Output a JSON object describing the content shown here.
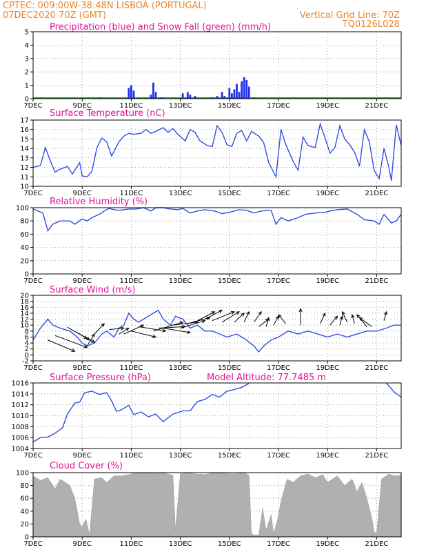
{
  "header": {
    "line1": "CPTEC:   009:00W-38:48N  LISBOA (PORTUGAL)",
    "line2": "07DEC2020 70Z (GMT)",
    "grid_note": "Vertical Grid Line: 70Z",
    "model_code": "TQ0126L028"
  },
  "colors": {
    "header": "#e8872a",
    "title": "#e0109a",
    "line": "#2f4de0",
    "precip": "#1f2ff0",
    "snow": "#1aa01a",
    "cloud": "#b0b0b0",
    "arrow": "#000000"
  },
  "x_ticks": [
    "7DEC",
    "9DEC",
    "11DEC",
    "13DEC",
    "15DEC",
    "17DEC",
    "19DEC",
    "21DEC"
  ],
  "chart_data": [
    {
      "type": "bar",
      "title": "Precipitation (blue) and Snow Fall (green) (mm/h)",
      "ylim": [
        0,
        5
      ],
      "yticks": [
        "0",
        "1",
        "2",
        "3",
        "4",
        "5"
      ],
      "x": [
        9.7,
        10.9,
        11.0,
        11.1,
        11.8,
        11.9,
        12.0,
        12.2,
        12.3,
        13.1,
        13.3,
        13.4,
        13.6,
        14.3,
        14.5,
        14.7,
        14.8,
        15.0,
        15.1,
        15.2,
        15.3,
        15.4,
        15.5,
        15.6,
        15.7,
        15.8,
        16.0
      ],
      "values": [
        0.1,
        0.8,
        1.0,
        0.6,
        0.3,
        1.2,
        0.5,
        0.1,
        0.1,
        0.4,
        0.5,
        0.3,
        0.2,
        0.1,
        0.2,
        0.5,
        0.2,
        0.8,
        0.4,
        0.7,
        1.1,
        0.5,
        1.3,
        1.6,
        1.4,
        0.9,
        0.1
      ]
    },
    {
      "type": "line",
      "title": "Surface Temperature (nC)",
      "ylim": [
        10,
        17
      ],
      "yticks": [
        "10",
        "11",
        "12",
        "13",
        "14",
        "15",
        "16",
        "17"
      ],
      "x": [
        7.0,
        7.3,
        7.5,
        7.7,
        7.9,
        8.1,
        8.4,
        8.6,
        8.9,
        9.0,
        9.2,
        9.4,
        9.6,
        9.8,
        10.0,
        10.2,
        10.5,
        10.7,
        10.9,
        11.1,
        11.4,
        11.6,
        11.8,
        12.0,
        12.3,
        12.5,
        12.7,
        12.9,
        13.2,
        13.4,
        13.6,
        13.8,
        14.1,
        14.3,
        14.5,
        14.7,
        14.9,
        15.1,
        15.3,
        15.5,
        15.7,
        15.9,
        16.2,
        16.4,
        16.6,
        16.8,
        16.9,
        17.1,
        17.3,
        17.6,
        17.8,
        18.0,
        18.2,
        18.5,
        18.7,
        18.9,
        19.1,
        19.3,
        19.5,
        19.7,
        19.9,
        20.1,
        20.3,
        20.5,
        20.7,
        20.9,
        21.1,
        21.3,
        21.5,
        21.6,
        21.8,
        22.0
      ],
      "values": [
        12.0,
        12.2,
        14.1,
        12.7,
        11.5,
        11.8,
        12.1,
        11.3,
        12.5,
        11.1,
        11.0,
        11.6,
        14.1,
        15.1,
        14.7,
        13.2,
        14.7,
        15.3,
        15.6,
        15.5,
        15.6,
        16.0,
        15.6,
        15.8,
        16.2,
        15.7,
        16.1,
        15.5,
        14.8,
        16.0,
        15.7,
        14.8,
        14.3,
        14.2,
        16.4,
        15.7,
        14.4,
        14.2,
        15.6,
        15.9,
        14.8,
        15.8,
        15.3,
        14.6,
        12.5,
        11.5,
        11.0,
        16.0,
        14.4,
        12.6,
        11.7,
        15.2,
        14.3,
        14.1,
        16.6,
        15.1,
        13.5,
        14.1,
        16.4,
        15.0,
        14.4,
        13.6,
        12.1,
        16.0,
        14.7,
        11.7,
        10.8,
        14.0,
        12.0,
        10.6,
        16.5,
        14.3
      ]
    },
    {
      "type": "line",
      "title": "Relative Humidity (%)",
      "ylim": [
        0,
        100
      ],
      "yticks": [
        "0",
        "20",
        "40",
        "60",
        "80",
        "100"
      ],
      "x": [
        7.0,
        7.4,
        7.6,
        7.8,
        8.1,
        8.5,
        8.7,
        9.0,
        9.2,
        9.4,
        9.7,
        9.9,
        10.1,
        10.3,
        10.5,
        10.9,
        11.2,
        11.5,
        11.8,
        12.0,
        12.3,
        12.6,
        12.9,
        13.1,
        13.4,
        13.7,
        14.0,
        14.4,
        14.7,
        15.0,
        15.4,
        15.7,
        16.0,
        16.3,
        16.7,
        16.9,
        17.1,
        17.4,
        17.8,
        18.1,
        18.5,
        18.9,
        19.1,
        19.4,
        19.8,
        20.2,
        20.5,
        20.9,
        21.1,
        21.3,
        21.6,
        21.8,
        22.0
      ],
      "values": [
        98,
        92,
        65,
        75,
        80,
        80,
        75,
        83,
        80,
        85,
        90,
        95,
        99,
        97,
        96,
        98,
        98,
        100,
        95,
        100,
        100,
        98,
        97,
        99,
        92,
        95,
        97,
        95,
        91,
        93,
        97,
        96,
        92,
        95,
        96,
        75,
        85,
        80,
        85,
        90,
        92,
        93,
        95,
        97,
        98,
        90,
        82,
        80,
        75,
        90,
        77,
        80,
        90
      ]
    },
    {
      "type": "line",
      "title": "Surface Wind (m/s)",
      "ylim": [
        -2,
        20
      ],
      "yticks": [
        "-2",
        "0",
        "2",
        "4",
        "6",
        "8",
        "10",
        "12",
        "14",
        "16",
        "18",
        "20"
      ],
      "x": [
        7.0,
        7.3,
        7.6,
        7.8,
        8.1,
        8.5,
        8.8,
        9.0,
        9.2,
        9.5,
        9.8,
        10.0,
        10.3,
        10.5,
        10.7,
        10.9,
        11.1,
        11.3,
        11.5,
        11.7,
        11.9,
        12.1,
        12.3,
        12.6,
        12.8,
        13.1,
        13.4,
        13.7,
        14.0,
        14.3,
        14.6,
        14.9,
        15.3,
        15.7,
        16.0,
        16.2,
        16.4,
        16.7,
        17.0,
        17.4,
        17.8,
        18.2,
        18.6,
        19.0,
        19.4,
        19.8,
        20.2,
        20.6,
        21.0,
        21.4,
        21.7,
        22.0
      ],
      "values": [
        5,
        9,
        12,
        10,
        9,
        8,
        6,
        4,
        3,
        4,
        7,
        8,
        6,
        9,
        10,
        14,
        12,
        11,
        12,
        13,
        14,
        15,
        12,
        10,
        13,
        12,
        9,
        10,
        8,
        8,
        7,
        6,
        7,
        5,
        3,
        1,
        3,
        5,
        6,
        8,
        7,
        8,
        7,
        6,
        7,
        6,
        7,
        8,
        8,
        9,
        10,
        10
      ],
      "arrows": [
        [
          7.6,
          5.0,
          8.7,
          1.2
        ],
        [
          7.9,
          6.5,
          9.2,
          2.5
        ],
        [
          8.4,
          9.3,
          9.2,
          5.5
        ],
        [
          8.8,
          7.5,
          9.3,
          5.0
        ],
        [
          9.0,
          6.5,
          9.5,
          4.2
        ],
        [
          9.2,
          3.0,
          9.5,
          7.0
        ],
        [
          9.5,
          7.0,
          9.9,
          10.5
        ],
        [
          10.1,
          8.5,
          10.7,
          9.0
        ],
        [
          10.5,
          7.0,
          10.9,
          9.0
        ],
        [
          10.7,
          7.0,
          11.5,
          10.0
        ],
        [
          11.0,
          8.0,
          12.0,
          6.0
        ],
        [
          11.3,
          9.5,
          12.4,
          8.0
        ],
        [
          11.9,
          8.0,
          13.1,
          11.0
        ],
        [
          12.1,
          9.0,
          13.2,
          9.5
        ],
        [
          12.3,
          9.0,
          13.4,
          7.5
        ],
        [
          12.7,
          10.0,
          13.7,
          11.0
        ],
        [
          13.0,
          9.0,
          14.0,
          11.5
        ],
        [
          13.3,
          10.5,
          14.2,
          12.5
        ],
        [
          13.7,
          11.5,
          14.4,
          14.5
        ],
        [
          14.0,
          12.0,
          14.7,
          15.0
        ],
        [
          14.3,
          11.5,
          15.2,
          14.5
        ],
        [
          14.7,
          11.0,
          15.4,
          14.5
        ],
        [
          15.2,
          11.0,
          15.6,
          14.0
        ],
        [
          15.6,
          11.0,
          15.8,
          14.5
        ],
        [
          16.0,
          11.0,
          16.3,
          14.5
        ],
        [
          16.2,
          9.5,
          16.6,
          12.0
        ],
        [
          16.5,
          9.5,
          16.6,
          12.5
        ],
        [
          16.8,
          10.0,
          17.0,
          13.0
        ],
        [
          17.3,
          10.5,
          17.0,
          13.5
        ],
        [
          17.9,
          10.0,
          17.9,
          15.5
        ],
        [
          18.7,
          10.5,
          18.9,
          14.0
        ],
        [
          19.1,
          10.0,
          19.4,
          13.0
        ],
        [
          19.5,
          10.0,
          19.6,
          13.0
        ],
        [
          19.8,
          11.0,
          19.6,
          14.5
        ],
        [
          20.1,
          10.5,
          20.0,
          13.5
        ],
        [
          20.6,
          9.5,
          20.2,
          13.5
        ],
        [
          20.8,
          9.5,
          20.3,
          12.5
        ],
        [
          21.3,
          11.5,
          21.4,
          14.5
        ]
      ]
    },
    {
      "type": "line",
      "title": "Surface Pressure (hPa)",
      "annotation": "Model Altitude: 77.7485 m",
      "ylim": [
        1004,
        1016
      ],
      "yticks": [
        "1004",
        "1006",
        "1008",
        "1010",
        "1012",
        "1014",
        "1016"
      ],
      "x": [
        7.0,
        7.3,
        7.6,
        7.9,
        8.2,
        8.4,
        8.7,
        8.9,
        9.1,
        9.4,
        9.7,
        10.0,
        10.2,
        10.4,
        10.6,
        10.9,
        11.1,
        11.4,
        11.7,
        12.0,
        12.3,
        12.7,
        13.1,
        13.4,
        13.7,
        14.0,
        14.3,
        14.6,
        14.9,
        15.2,
        15.5,
        15.8,
        21.4,
        21.7,
        22.0
      ],
      "values": [
        1005.2,
        1006.0,
        1006.1,
        1006.8,
        1007.8,
        1010.3,
        1012.3,
        1012.5,
        1014.2,
        1014.5,
        1013.9,
        1014.2,
        1012.7,
        1010.8,
        1011.1,
        1011.9,
        1010.2,
        1010.7,
        1009.8,
        1010.3,
        1008.9,
        1010.3,
        1010.9,
        1010.9,
        1012.6,
        1013.0,
        1013.9,
        1013.4,
        1014.5,
        1014.8,
        1015.2,
        1015.9,
        1016.0,
        1014.4,
        1013.4
      ]
    },
    {
      "type": "area",
      "title": "Cloud Cover (%)",
      "ylim": [
        0,
        100
      ],
      "yticks": [
        "0",
        "20",
        "40",
        "60",
        "80",
        "100"
      ],
      "x": [
        7.0,
        7.3,
        7.6,
        7.9,
        8.1,
        8.5,
        8.7,
        8.9,
        9.0,
        9.15,
        9.3,
        9.5,
        9.8,
        10.0,
        10.3,
        10.6,
        10.9,
        11.2,
        11.5,
        11.8,
        12.2,
        12.5,
        12.7,
        12.8,
        13.0,
        13.3,
        13.6,
        14.0,
        14.4,
        14.8,
        15.2,
        15.6,
        15.8,
        15.9,
        16.0,
        16.2,
        16.35,
        16.5,
        16.7,
        16.8,
        16.95,
        17.1,
        17.35,
        17.6,
        17.9,
        18.2,
        18.5,
        18.8,
        19.0,
        19.4,
        19.7,
        20.0,
        20.2,
        20.4,
        20.6,
        20.8,
        20.9,
        21.0,
        21.2,
        21.5,
        21.7,
        22.0
      ],
      "values": [
        95,
        88,
        92,
        75,
        90,
        80,
        60,
        20,
        15,
        28,
        3,
        90,
        92,
        85,
        95,
        95,
        97,
        100,
        99,
        100,
        100,
        98,
        96,
        10,
        98,
        100,
        98,
        97,
        100,
        99,
        98,
        100,
        96,
        5,
        3,
        3,
        45,
        10,
        35,
        5,
        25,
        55,
        90,
        85,
        95,
        98,
        92,
        97,
        85,
        95,
        80,
        90,
        70,
        85,
        60,
        30,
        8,
        5,
        90,
        98,
        95,
        96
      ]
    }
  ]
}
